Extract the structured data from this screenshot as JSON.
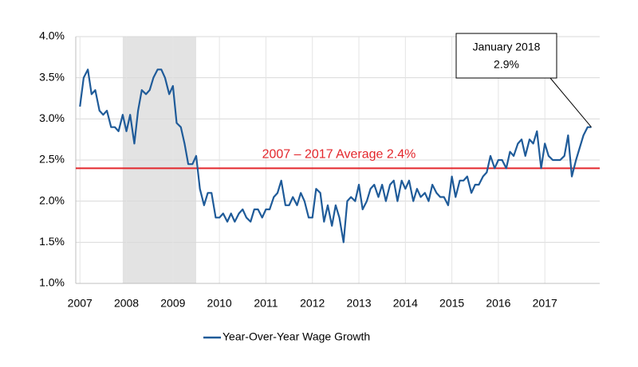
{
  "chart_data": {
    "type": "line",
    "x": [
      2007,
      2007.08,
      2007.17,
      2007.25,
      2007.33,
      2007.42,
      2007.5,
      2007.58,
      2007.67,
      2007.75,
      2007.83,
      2007.92,
      2008,
      2008.08,
      2008.17,
      2008.25,
      2008.33,
      2008.42,
      2008.5,
      2008.58,
      2008.67,
      2008.75,
      2008.83,
      2008.92,
      2009,
      2009.08,
      2009.17,
      2009.25,
      2009.33,
      2009.42,
      2009.5,
      2009.58,
      2009.67,
      2009.75,
      2009.83,
      2009.92,
      2010,
      2010.08,
      2010.17,
      2010.25,
      2010.33,
      2010.42,
      2010.5,
      2010.58,
      2010.67,
      2010.75,
      2010.83,
      2010.92,
      2011,
      2011.08,
      2011.17,
      2011.25,
      2011.33,
      2011.42,
      2011.5,
      2011.58,
      2011.67,
      2011.75,
      2011.83,
      2011.92,
      2012,
      2012.08,
      2012.17,
      2012.25,
      2012.33,
      2012.42,
      2012.5,
      2012.58,
      2012.67,
      2012.75,
      2012.83,
      2012.92,
      2013,
      2013.08,
      2013.17,
      2013.25,
      2013.33,
      2013.42,
      2013.5,
      2013.58,
      2013.67,
      2013.75,
      2013.83,
      2013.92,
      2014,
      2014.08,
      2014.17,
      2014.25,
      2014.33,
      2014.42,
      2014.5,
      2014.58,
      2014.67,
      2014.75,
      2014.83,
      2014.92,
      2015,
      2015.08,
      2015.17,
      2015.25,
      2015.33,
      2015.42,
      2015.5,
      2015.58,
      2015.67,
      2015.75,
      2015.83,
      2015.92,
      2016,
      2016.08,
      2016.17,
      2016.25,
      2016.33,
      2016.42,
      2016.5,
      2016.58,
      2016.67,
      2016.75,
      2016.83,
      2016.92,
      2017,
      2017.08,
      2017.17,
      2017.25,
      2017.33,
      2017.42,
      2017.5,
      2017.58,
      2017.67,
      2017.75,
      2017.83,
      2017.92,
      2018
    ],
    "series": [
      {
        "name": "Year-Over-Year Wage Growth",
        "color": "#1f5b99",
        "values": [
          3.15,
          3.5,
          3.6,
          3.3,
          3.35,
          3.1,
          3.05,
          3.1,
          2.9,
          2.9,
          2.85,
          3.05,
          2.85,
          3.05,
          2.7,
          3.1,
          3.35,
          3.3,
          3.35,
          3.5,
          3.6,
          3.6,
          3.5,
          3.3,
          3.4,
          2.95,
          2.9,
          2.7,
          2.45,
          2.45,
          2.55,
          2.15,
          1.95,
          2.1,
          2.1,
          1.8,
          1.8,
          1.85,
          1.75,
          1.85,
          1.75,
          1.85,
          1.9,
          1.8,
          1.75,
          1.9,
          1.9,
          1.8,
          1.9,
          1.9,
          2.05,
          2.1,
          2.25,
          1.95,
          1.95,
          2.05,
          1.95,
          2.1,
          2.0,
          1.8,
          1.8,
          2.15,
          2.1,
          1.75,
          1.95,
          1.7,
          1.95,
          1.8,
          1.5,
          2.0,
          2.05,
          2.0,
          2.2,
          1.9,
          2.0,
          2.15,
          2.2,
          2.05,
          2.2,
          2.0,
          2.2,
          2.25,
          2.0,
          2.25,
          2.15,
          2.25,
          2.0,
          2.15,
          2.05,
          2.1,
          2.0,
          2.2,
          2.1,
          2.05,
          2.05,
          1.95,
          2.3,
          2.05,
          2.25,
          2.25,
          2.3,
          2.1,
          2.2,
          2.2,
          2.3,
          2.35,
          2.55,
          2.4,
          2.5,
          2.5,
          2.4,
          2.6,
          2.55,
          2.7,
          2.75,
          2.55,
          2.75,
          2.7,
          2.85,
          2.4,
          2.7,
          2.55,
          2.5,
          2.5,
          2.5,
          2.55,
          2.8,
          2.3,
          2.5,
          2.65,
          2.8,
          2.9,
          2.9
        ]
      }
    ],
    "xlim": [
      2006.91,
      2018.18
    ],
    "xticks": [
      2007,
      2008,
      2009,
      2010,
      2011,
      2012,
      2013,
      2014,
      2015,
      2016,
      2017
    ],
    "ylim": [
      1.0,
      4.0
    ],
    "yticks": [
      {
        "value": 1.0,
        "label": "1.0%"
      },
      {
        "value": 1.5,
        "label": "1.5%"
      },
      {
        "value": 2.0,
        "label": "2.0%"
      },
      {
        "value": 2.5,
        "label": "2.5%"
      },
      {
        "value": 3.0,
        "label": "3.0%"
      },
      {
        "value": 3.5,
        "label": "3.5%"
      },
      {
        "value": 4.0,
        "label": "4.0%"
      }
    ],
    "grid": true,
    "shaded_span": [
      2007.92,
      2009.5
    ],
    "average": {
      "value": 2.4,
      "label": "2007 – 2017 Average 2.4%",
      "color": "#e3262b"
    },
    "callout": {
      "label": "January 2018",
      "value": 2.9,
      "value_label": "2.9%"
    },
    "legend": "bottom"
  }
}
